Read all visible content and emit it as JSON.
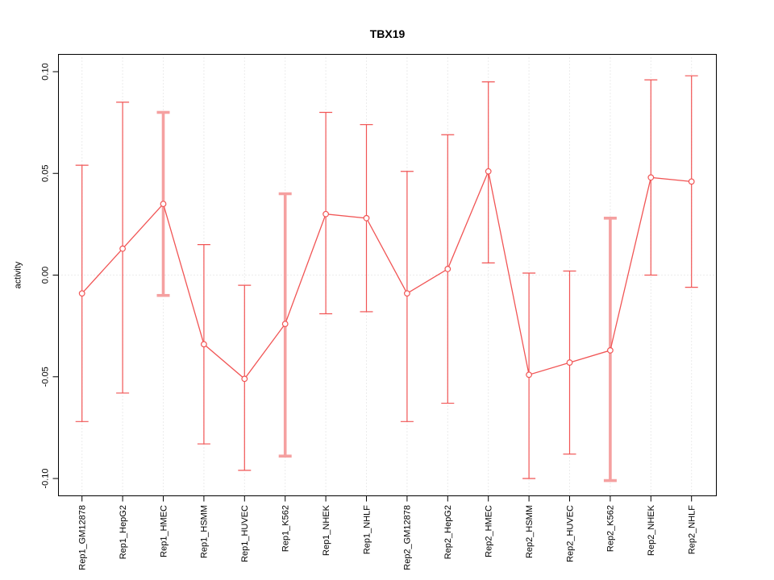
{
  "chart_data": {
    "type": "line",
    "title": "TBX19",
    "xlabel": "",
    "ylabel": "activity",
    "categories": [
      "Rep1_GM12878",
      "Rep1_HepG2",
      "Rep1_HMEC",
      "Rep1_HSMM",
      "Rep1_HUVEC",
      "Rep1_K562",
      "Rep1_NHEK",
      "Rep1_NHLF",
      "Rep2_GM12878",
      "Rep2_HepG2",
      "Rep2_HMEC",
      "Rep2_HSMM",
      "Rep2_HUVEC",
      "Rep2_K562",
      "Rep2_NHEK",
      "Rep2_NHLF"
    ],
    "series": [
      {
        "name": "activity",
        "values": [
          -0.009,
          0.013,
          0.035,
          -0.034,
          -0.051,
          -0.024,
          0.03,
          0.028,
          -0.009,
          0.003,
          0.051,
          -0.049,
          -0.043,
          -0.037,
          0.048,
          0.046
        ],
        "error_high": [
          0.054,
          0.085,
          0.08,
          0.015,
          -0.005,
          0.04,
          0.08,
          0.074,
          0.051,
          0.069,
          0.095,
          0.001,
          0.002,
          0.028,
          0.096,
          0.098
        ],
        "error_low": [
          -0.072,
          -0.058,
          -0.01,
          -0.083,
          -0.096,
          -0.089,
          -0.019,
          -0.018,
          -0.072,
          -0.063,
          0.006,
          -0.1,
          -0.088,
          -0.101,
          0.0,
          -0.006
        ],
        "thick_error_bar": [
          false,
          false,
          true,
          false,
          false,
          true,
          false,
          false,
          false,
          false,
          false,
          false,
          false,
          true,
          false,
          false
        ]
      }
    ],
    "ylim": [
      -0.108,
      0.108
    ],
    "yticks": [
      0.1,
      0.05,
      0.0,
      -0.05,
      -0.1
    ],
    "ytick_labels": [
      "0.10",
      "0.05",
      "0.00",
      "-0.05",
      "-0.10"
    ],
    "grid": {
      "vertical_dotted_per_category": true,
      "horizontal_dotted_at_zero": true
    },
    "legend_position": "none",
    "marker": "open-circle",
    "colors": {
      "series": "#f15555",
      "thick_error": "#f5a0a0",
      "grid": "#d8d8d8",
      "frame": "#000000",
      "text": "#000000",
      "background": "#ffffff"
    }
  }
}
